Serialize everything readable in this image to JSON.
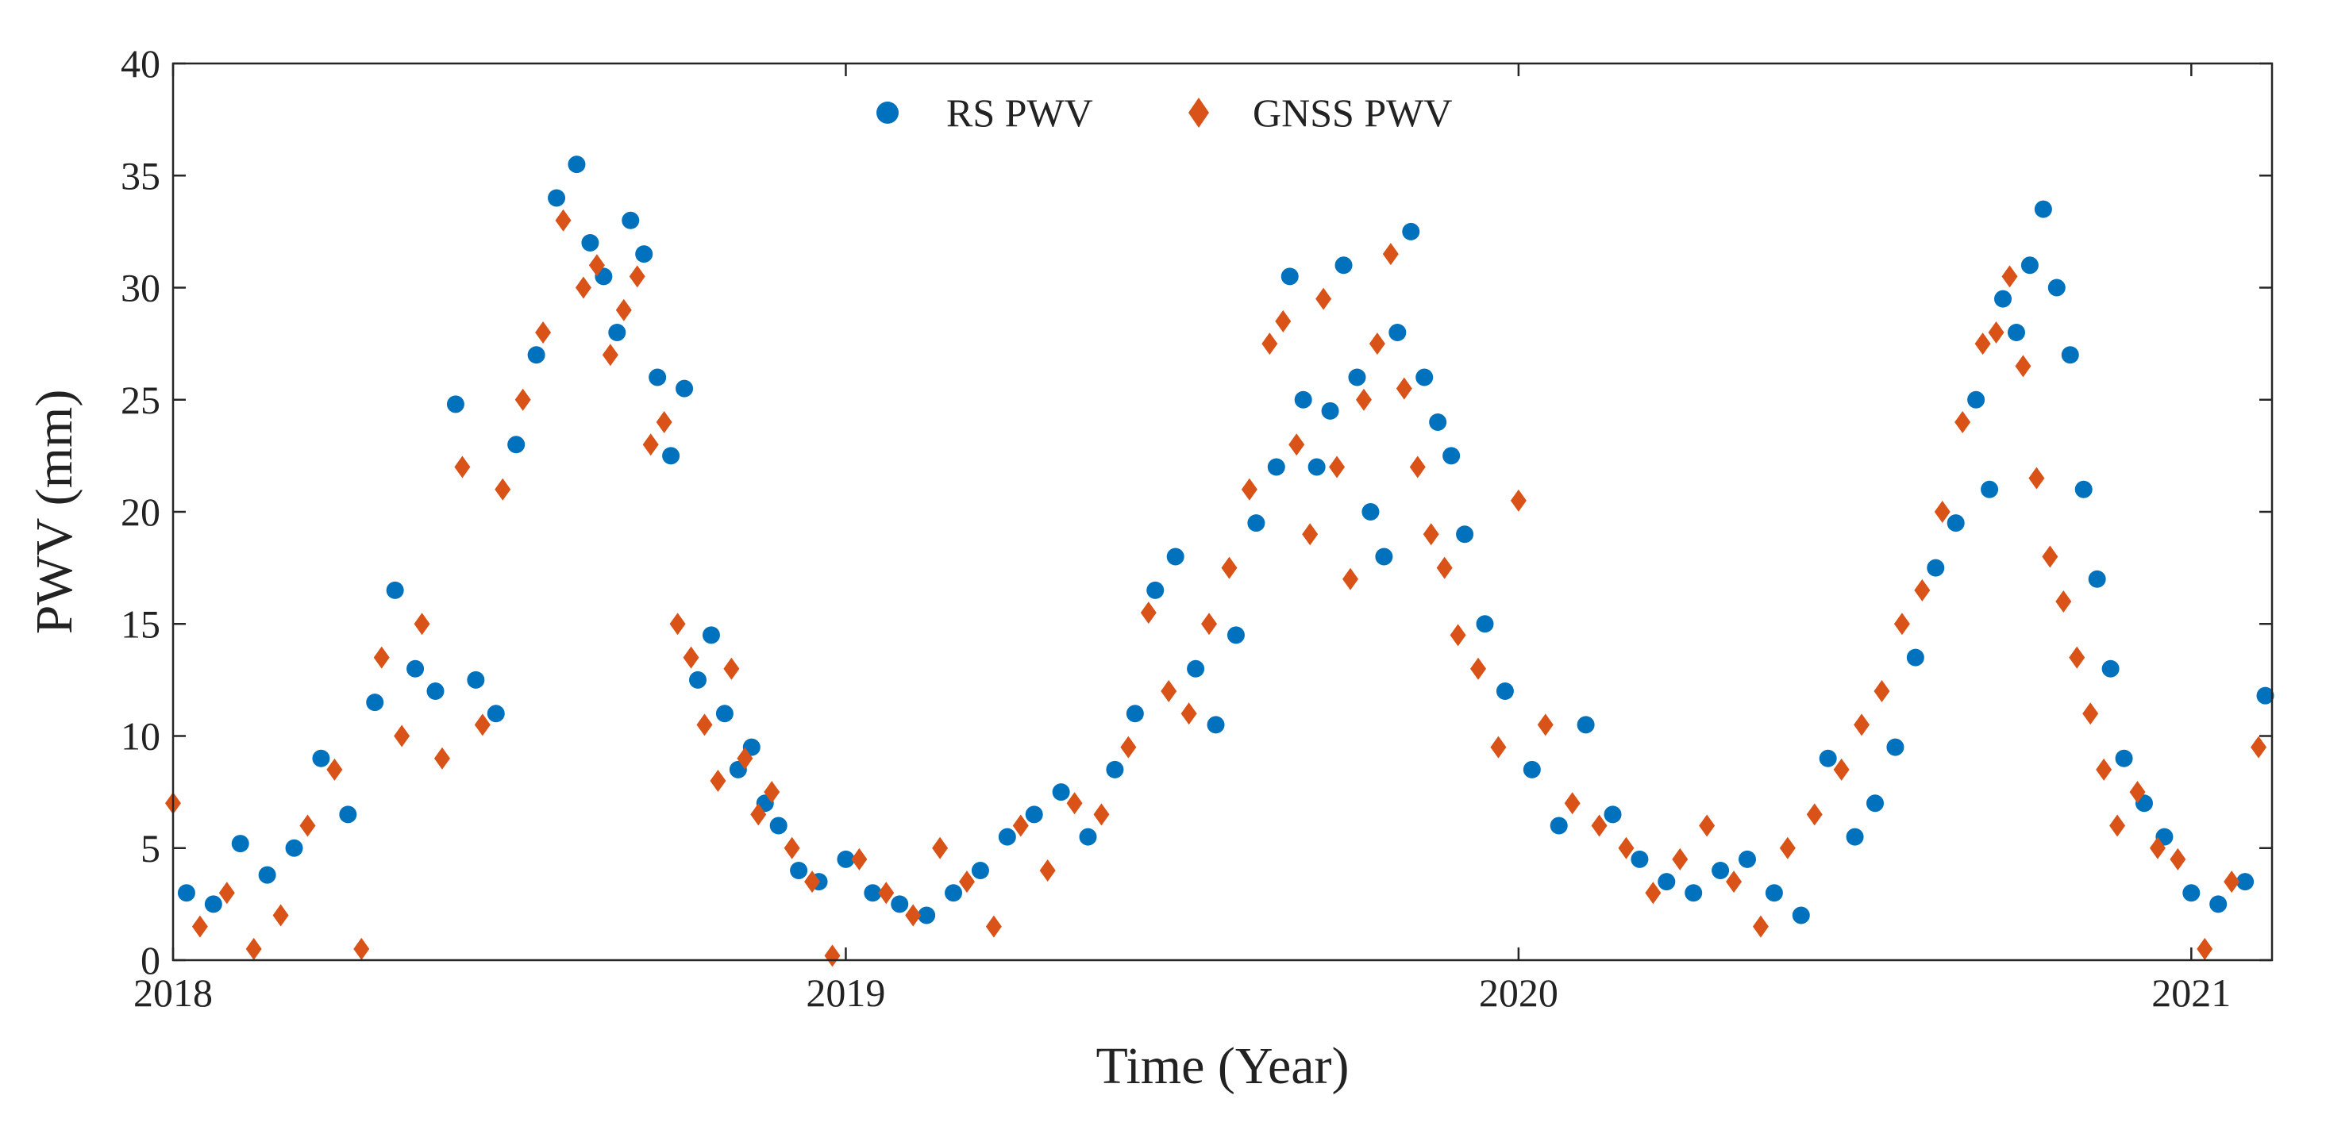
{
  "chart_data": {
    "type": "scatter",
    "title": "",
    "xlabel": "Time (Year)",
    "ylabel": "PWV (mm)",
    "xlim": [
      2018.0,
      2021.12
    ],
    "ylim": [
      0,
      40
    ],
    "x_ticks": [
      2018,
      2019,
      2020,
      2021
    ],
    "x_tick_labels": [
      "2018",
      "2019",
      "2020",
      "2021"
    ],
    "y_ticks": [
      0,
      5,
      10,
      15,
      20,
      25,
      30,
      35,
      40
    ],
    "y_tick_labels": [
      "0",
      "5",
      "10",
      "15",
      "20",
      "25",
      "30",
      "35",
      "40"
    ],
    "grid": false,
    "legend_position": "top-center",
    "colors": {
      "rs": "#0072BD",
      "gnss": "#D95319",
      "axis": "#262626"
    },
    "series": [
      {
        "name": "RS PWV",
        "marker": "circle",
        "color": "#0072BD",
        "x": [
          2018.02,
          2018.06,
          2018.1,
          2018.14,
          2018.18,
          2018.22,
          2018.26,
          2018.3,
          2018.33,
          2018.36,
          2018.39,
          2018.42,
          2018.45,
          2018.48,
          2018.51,
          2018.54,
          2018.57,
          2018.6,
          2018.62,
          2018.64,
          2018.66,
          2018.68,
          2018.7,
          2018.72,
          2018.74,
          2018.76,
          2018.78,
          2018.8,
          2018.82,
          2018.84,
          2018.86,
          2018.88,
          2018.9,
          2018.93,
          2018.96,
          2019.0,
          2019.04,
          2019.08,
          2019.12,
          2019.16,
          2019.2,
          2019.24,
          2019.28,
          2019.32,
          2019.36,
          2019.4,
          2019.43,
          2019.46,
          2019.49,
          2019.52,
          2019.55,
          2019.58,
          2019.61,
          2019.64,
          2019.66,
          2019.68,
          2019.7,
          2019.72,
          2019.74,
          2019.76,
          2019.78,
          2019.8,
          2019.82,
          2019.84,
          2019.86,
          2019.88,
          2019.9,
          2019.92,
          2019.95,
          2019.98,
          2020.02,
          2020.06,
          2020.1,
          2020.14,
          2020.18,
          2020.22,
          2020.26,
          2020.3,
          2020.34,
          2020.38,
          2020.42,
          2020.46,
          2020.5,
          2020.53,
          2020.56,
          2020.59,
          2020.62,
          2020.65,
          2020.68,
          2020.7,
          2020.72,
          2020.74,
          2020.76,
          2020.78,
          2020.8,
          2020.82,
          2020.84,
          2020.86,
          2020.88,
          2020.9,
          2020.93,
          2020.96,
          2021.0,
          2021.04,
          2021.08,
          2021.11
        ],
        "y": [
          3.0,
          2.5,
          5.2,
          3.8,
          5.0,
          9.0,
          6.5,
          11.5,
          16.5,
          13.0,
          12.0,
          24.8,
          12.5,
          11.0,
          23.0,
          27.0,
          34.0,
          35.5,
          32.0,
          30.5,
          28.0,
          33.0,
          31.5,
          26.0,
          22.5,
          25.5,
          12.5,
          14.5,
          11.0,
          8.5,
          9.5,
          7.0,
          6.0,
          4.0,
          3.5,
          4.5,
          3.0,
          2.5,
          2.0,
          3.0,
          4.0,
          5.5,
          6.5,
          7.5,
          5.5,
          8.5,
          11.0,
          16.5,
          18.0,
          13.0,
          10.5,
          14.5,
          19.5,
          22.0,
          30.5,
          25.0,
          22.0,
          24.5,
          31.0,
          26.0,
          20.0,
          18.0,
          28.0,
          32.5,
          26.0,
          24.0,
          22.5,
          19.0,
          15.0,
          12.0,
          8.5,
          6.0,
          10.5,
          6.5,
          4.5,
          3.5,
          3.0,
          4.0,
          4.5,
          3.0,
          2.0,
          9.0,
          5.5,
          7.0,
          9.5,
          13.5,
          17.5,
          19.5,
          25.0,
          21.0,
          29.5,
          28.0,
          31.0,
          33.5,
          30.0,
          27.0,
          21.0,
          17.0,
          13.0,
          9.0,
          7.0,
          5.5,
          3.0,
          2.5,
          3.5,
          11.8
        ]
      },
      {
        "name": "GNSS PWV",
        "marker": "diamond",
        "color": "#D95319",
        "x": [
          2018.0,
          2018.04,
          2018.08,
          2018.12,
          2018.16,
          2018.2,
          2018.24,
          2018.28,
          2018.31,
          2018.34,
          2018.37,
          2018.4,
          2018.43,
          2018.46,
          2018.49,
          2018.52,
          2018.55,
          2018.58,
          2018.61,
          2018.63,
          2018.65,
          2018.67,
          2018.69,
          2018.71,
          2018.73,
          2018.75,
          2018.77,
          2018.79,
          2018.81,
          2018.83,
          2018.85,
          2018.87,
          2018.89,
          2018.92,
          2018.95,
          2018.98,
          2019.02,
          2019.06,
          2019.1,
          2019.14,
          2019.18,
          2019.22,
          2019.26,
          2019.3,
          2019.34,
          2019.38,
          2019.42,
          2019.45,
          2019.48,
          2019.51,
          2019.54,
          2019.57,
          2019.6,
          2019.63,
          2019.65,
          2019.67,
          2019.69,
          2019.71,
          2019.73,
          2019.75,
          2019.77,
          2019.79,
          2019.81,
          2019.83,
          2019.85,
          2019.87,
          2019.89,
          2019.91,
          2019.94,
          2019.97,
          2020.0,
          2020.04,
          2020.08,
          2020.12,
          2020.16,
          2020.2,
          2020.24,
          2020.28,
          2020.32,
          2020.36,
          2020.4,
          2020.44,
          2020.48,
          2020.51,
          2020.54,
          2020.57,
          2020.6,
          2020.63,
          2020.66,
          2020.69,
          2020.71,
          2020.73,
          2020.75,
          2020.77,
          2020.79,
          2020.81,
          2020.83,
          2020.85,
          2020.87,
          2020.89,
          2020.92,
          2020.95,
          2020.98,
          2021.02,
          2021.06,
          2021.1
        ],
        "y": [
          7.0,
          1.5,
          3.0,
          0.5,
          2.0,
          6.0,
          8.5,
          0.5,
          13.5,
          10.0,
          15.0,
          9.0,
          22.0,
          10.5,
          21.0,
          25.0,
          28.0,
          33.0,
          30.0,
          31.0,
          27.0,
          29.0,
          30.5,
          23.0,
          24.0,
          15.0,
          13.5,
          10.5,
          8.0,
          13.0,
          9.0,
          6.5,
          7.5,
          5.0,
          3.5,
          0.2,
          4.5,
          3.0,
          2.0,
          5.0,
          3.5,
          1.5,
          6.0,
          4.0,
          7.0,
          6.5,
          9.5,
          15.5,
          12.0,
          11.0,
          15.0,
          17.5,
          21.0,
          27.5,
          28.5,
          23.0,
          19.0,
          29.5,
          22.0,
          17.0,
          25.0,
          27.5,
          31.5,
          25.5,
          22.0,
          19.0,
          17.5,
          14.5,
          13.0,
          9.5,
          20.5,
          10.5,
          7.0,
          6.0,
          5.0,
          3.0,
          4.5,
          6.0,
          3.5,
          1.5,
          5.0,
          6.5,
          8.5,
          10.5,
          12.0,
          15.0,
          16.5,
          20.0,
          24.0,
          27.5,
          28.0,
          30.5,
          26.5,
          21.5,
          18.0,
          16.0,
          13.5,
          11.0,
          8.5,
          6.0,
          7.5,
          5.0,
          4.5,
          0.5,
          3.5,
          9.5
        ]
      }
    ]
  }
}
